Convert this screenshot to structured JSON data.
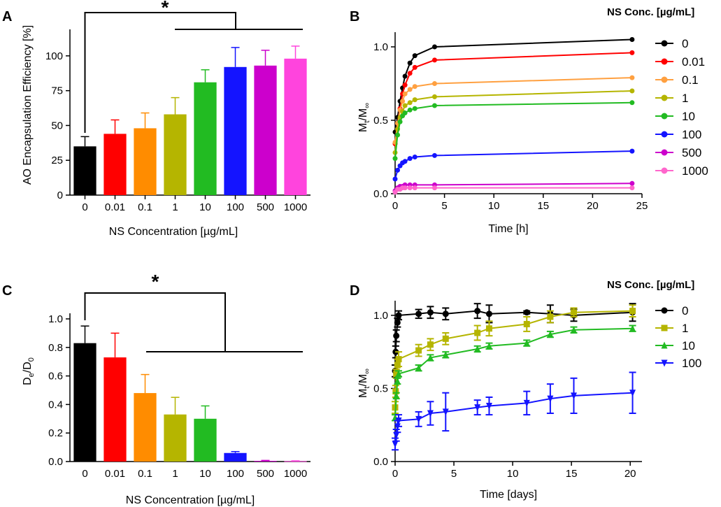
{
  "chart_data": [
    {
      "panel": "A",
      "type": "bar",
      "categories": [
        "0",
        "0.01",
        "0.1",
        "1",
        "10",
        "100",
        "500",
        "1000"
      ],
      "values": [
        35,
        44,
        48,
        58,
        81,
        92,
        93,
        98
      ],
      "errors": [
        7,
        10,
        11,
        12,
        9,
        14,
        11,
        9
      ],
      "colors": [
        "#000000",
        "#ff0000",
        "#ff8c00",
        "#b5b500",
        "#22bb22",
        "#1414ff",
        "#cc00cc",
        "#ff44dd"
      ],
      "xlabel": "NS Concentration [µg/mL]",
      "ylabel": "AO Encapsulation Efficiency [%]",
      "ylim": [
        0,
        115
      ],
      "yticks": [
        "0",
        "25",
        "50",
        "75",
        "100"
      ],
      "annotation": "*"
    },
    {
      "panel": "B",
      "type": "line",
      "legend_title": "NS Conc. [µg/mL]",
      "xlabel": "Time [h]",
      "ylabel_main": "M",
      "ylabel_sub1": "t",
      "ylabel_mid": "/M",
      "ylabel_sub2": "∞",
      "xlim": [
        0,
        25
      ],
      "ylim": [
        0,
        1.1
      ],
      "xticks": [
        "0",
        "5",
        "10",
        "15",
        "20",
        "25"
      ],
      "yticks": [
        "0.0",
        "0.5",
        "1.0"
      ],
      "x": [
        0,
        0.25,
        0.5,
        0.75,
        1,
        1.5,
        2,
        4,
        24
      ],
      "series": [
        {
          "name": "0",
          "color": "#000000",
          "values": [
            0.42,
            0.52,
            0.63,
            0.72,
            0.8,
            0.89,
            0.94,
            1.0,
            1.05
          ]
        },
        {
          "name": "0.01",
          "color": "#ff0000",
          "values": [
            0.34,
            0.48,
            0.58,
            0.68,
            0.74,
            0.82,
            0.86,
            0.91,
            0.96
          ]
        },
        {
          "name": "0.1",
          "color": "#ffa040",
          "values": [
            0.35,
            0.48,
            0.57,
            0.63,
            0.68,
            0.71,
            0.73,
            0.75,
            0.79
          ]
        },
        {
          "name": "1",
          "color": "#b5b500",
          "values": [
            0.28,
            0.44,
            0.52,
            0.56,
            0.6,
            0.62,
            0.64,
            0.66,
            0.7
          ]
        },
        {
          "name": "10",
          "color": "#22bb22",
          "values": [
            0.24,
            0.4,
            0.49,
            0.53,
            0.55,
            0.57,
            0.58,
            0.6,
            0.62
          ]
        },
        {
          "name": "100",
          "color": "#1414ff",
          "values": [
            0.1,
            0.16,
            0.19,
            0.21,
            0.22,
            0.24,
            0.25,
            0.26,
            0.29
          ]
        },
        {
          "name": "500",
          "color": "#cc00cc",
          "values": [
            0.02,
            0.04,
            0.05,
            0.05,
            0.06,
            0.06,
            0.06,
            0.06,
            0.07
          ]
        },
        {
          "name": "1000",
          "color": "#ff66cc",
          "values": [
            0.01,
            0.03,
            0.03,
            0.04,
            0.04,
            0.04,
            0.04,
            0.04,
            0.04
          ]
        }
      ]
    },
    {
      "panel": "C",
      "type": "bar",
      "categories": [
        "0",
        "0.01",
        "0.1",
        "1",
        "10",
        "100",
        "500",
        "1000"
      ],
      "values": [
        0.83,
        0.73,
        0.48,
        0.33,
        0.3,
        0.06,
        0.005,
        0.003
      ],
      "errors": [
        0.12,
        0.17,
        0.13,
        0.12,
        0.09,
        0.01,
        0.003,
        0.002
      ],
      "colors": [
        "#000000",
        "#ff0000",
        "#ff8c00",
        "#b5b500",
        "#22bb22",
        "#1414ff",
        "#cc00cc",
        "#ff44dd"
      ],
      "xlabel": "NS Concentration [µg/mL]",
      "ylabel_main": "D",
      "ylabel_sub1": "e",
      "ylabel_mid": "/D",
      "ylabel_sub2": "0",
      "ylim": [
        0,
        1.0
      ],
      "yticks": [
        "0.0",
        "0.2",
        "0.4",
        "0.6",
        "0.8",
        "1.0"
      ],
      "annotation": "*"
    },
    {
      "panel": "D",
      "type": "line",
      "legend_title": "NS Conc. [µg/mL]",
      "xlabel": "Time [days]",
      "ylabel_main": "M",
      "ylabel_sub1": "t",
      "ylabel_mid": "/M",
      "ylabel_sub2": "∞",
      "xlim": [
        0,
        21
      ],
      "ylim": [
        0,
        1.1
      ],
      "xticks": [
        "0",
        "5",
        "10",
        "15",
        "20"
      ],
      "yticks": [
        "0.0",
        "0.5",
        "1.0"
      ],
      "series": [
        {
          "name": "0",
          "color": "#000000",
          "marker": "circle",
          "x": [
            0,
            0.05,
            0.1,
            0.2,
            0.3,
            2,
            3,
            4.3,
            7,
            8,
            11.2,
            13.2,
            15.2,
            20.2
          ],
          "values": [
            0.62,
            0.75,
            0.86,
            0.95,
            1.0,
            1.01,
            1.02,
            1.01,
            1.03,
            1.01,
            1.02,
            1.01,
            1.0,
            1.02
          ],
          "errors": [
            0.04,
            0.04,
            0.04,
            0.03,
            0.03,
            0.03,
            0.04,
            0.04,
            0.05,
            0.06,
            0.01,
            0.06,
            0.04,
            0.06
          ]
        },
        {
          "name": "1",
          "color": "#b5b500",
          "marker": "square",
          "x": [
            0,
            0.05,
            0.1,
            0.2,
            0.3,
            2,
            3,
            4.3,
            7,
            8,
            11.2,
            13.2,
            15.2,
            20.2
          ],
          "values": [
            0.37,
            0.48,
            0.6,
            0.66,
            0.7,
            0.76,
            0.8,
            0.84,
            0.88,
            0.91,
            0.94,
            0.99,
            1.02,
            1.03
          ],
          "errors": [
            0.04,
            0.04,
            0.03,
            0.04,
            0.05,
            0.04,
            0.04,
            0.04,
            0.05,
            0.05,
            0.05,
            0.04,
            0.03,
            0.04
          ]
        },
        {
          "name": "10",
          "color": "#22bb22",
          "marker": "triangle-up",
          "x": [
            0,
            0.1,
            0.2,
            0.3,
            2,
            3,
            4.3,
            7,
            8,
            11.2,
            13.2,
            15.2,
            20.2
          ],
          "values": [
            0.3,
            0.45,
            0.55,
            0.6,
            0.64,
            0.71,
            0.73,
            0.77,
            0.79,
            0.81,
            0.87,
            0.9,
            0.91
          ],
          "errors": [
            0.02,
            0.02,
            0.02,
            0.02,
            0.02,
            0.02,
            0.02,
            0.02,
            0.02,
            0.02,
            0.02,
            0.02,
            0.02
          ]
        },
        {
          "name": "100",
          "color": "#1414ff",
          "marker": "triangle-down",
          "x": [
            0,
            0.1,
            0.2,
            0.3,
            2,
            3,
            4.3,
            7,
            8,
            11.2,
            13.2,
            15.2,
            20.2
          ],
          "values": [
            0.12,
            0.18,
            0.24,
            0.28,
            0.29,
            0.33,
            0.34,
            0.37,
            0.38,
            0.4,
            0.43,
            0.45,
            0.47
          ],
          "errors": [
            0.04,
            0.04,
            0.04,
            0.04,
            0.05,
            0.08,
            0.13,
            0.05,
            0.06,
            0.08,
            0.1,
            0.12,
            0.14
          ]
        }
      ]
    }
  ]
}
